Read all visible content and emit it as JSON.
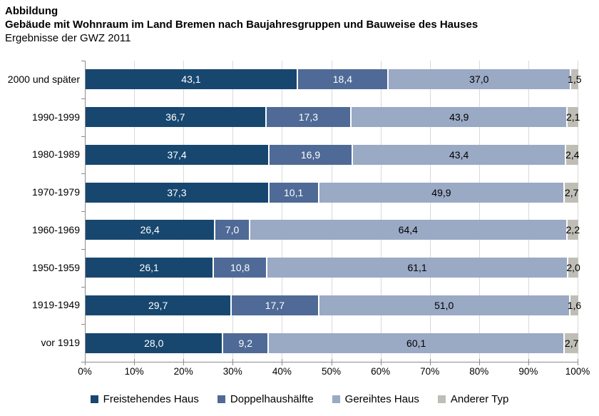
{
  "header": {
    "title": "Abbildung",
    "subtitle": "Gebäude mit Wohnraum im Land Bremen nach Baujahresgruppen und Bauweise des Hauses",
    "caption": "Ergebnisse der GWZ 2011"
  },
  "chart_data": {
    "type": "bar",
    "variant": "horizontal-stacked",
    "title": "Abbildung",
    "subtitle": "Gebäude mit Wohnraum im Land Bremen nach Baujahresgruppen und Bauweise des Hauses",
    "caption": "Ergebnisse der GWZ 2011",
    "unit": "%",
    "decimal_separator": ",",
    "categories": [
      "2000 und später",
      "1990-1999",
      "1980-1989",
      "1970-1979",
      "1960-1969",
      "1950-1959",
      "1919-1949",
      "vor 1919"
    ],
    "series": [
      {
        "name": "Freistehendes Haus",
        "color": "#17476F",
        "label_color": "#ffffff",
        "values": [
          43.1,
          36.7,
          37.4,
          37.3,
          26.4,
          26.1,
          29.7,
          28.0
        ]
      },
      {
        "name": "Doppelhaushälfte",
        "color": "#4F6A96",
        "label_color": "#ffffff",
        "values": [
          18.4,
          17.3,
          16.9,
          10.1,
          7.0,
          10.8,
          17.7,
          9.2
        ]
      },
      {
        "name": "Gereihtes Haus",
        "color": "#9AA9C4",
        "label_color": "#000000",
        "values": [
          37.0,
          43.9,
          43.4,
          49.9,
          64.4,
          61.1,
          51.0,
          60.1
        ]
      },
      {
        "name": "Anderer Typ",
        "color": "#BFBEB6",
        "label_color": "#000000",
        "values": [
          1.5,
          2.1,
          2.4,
          2.7,
          2.2,
          2.0,
          1.6,
          2.7
        ]
      }
    ],
    "x_ticks": [
      "0%",
      "10%",
      "20%",
      "30%",
      "40%",
      "50%",
      "60%",
      "70%",
      "80%",
      "90%",
      "100%"
    ],
    "xlim": [
      0,
      100
    ],
    "grid": true,
    "gridline_color": "#d9d9d9",
    "axis_color": "#8c8c8c",
    "legend_position": "bottom"
  }
}
